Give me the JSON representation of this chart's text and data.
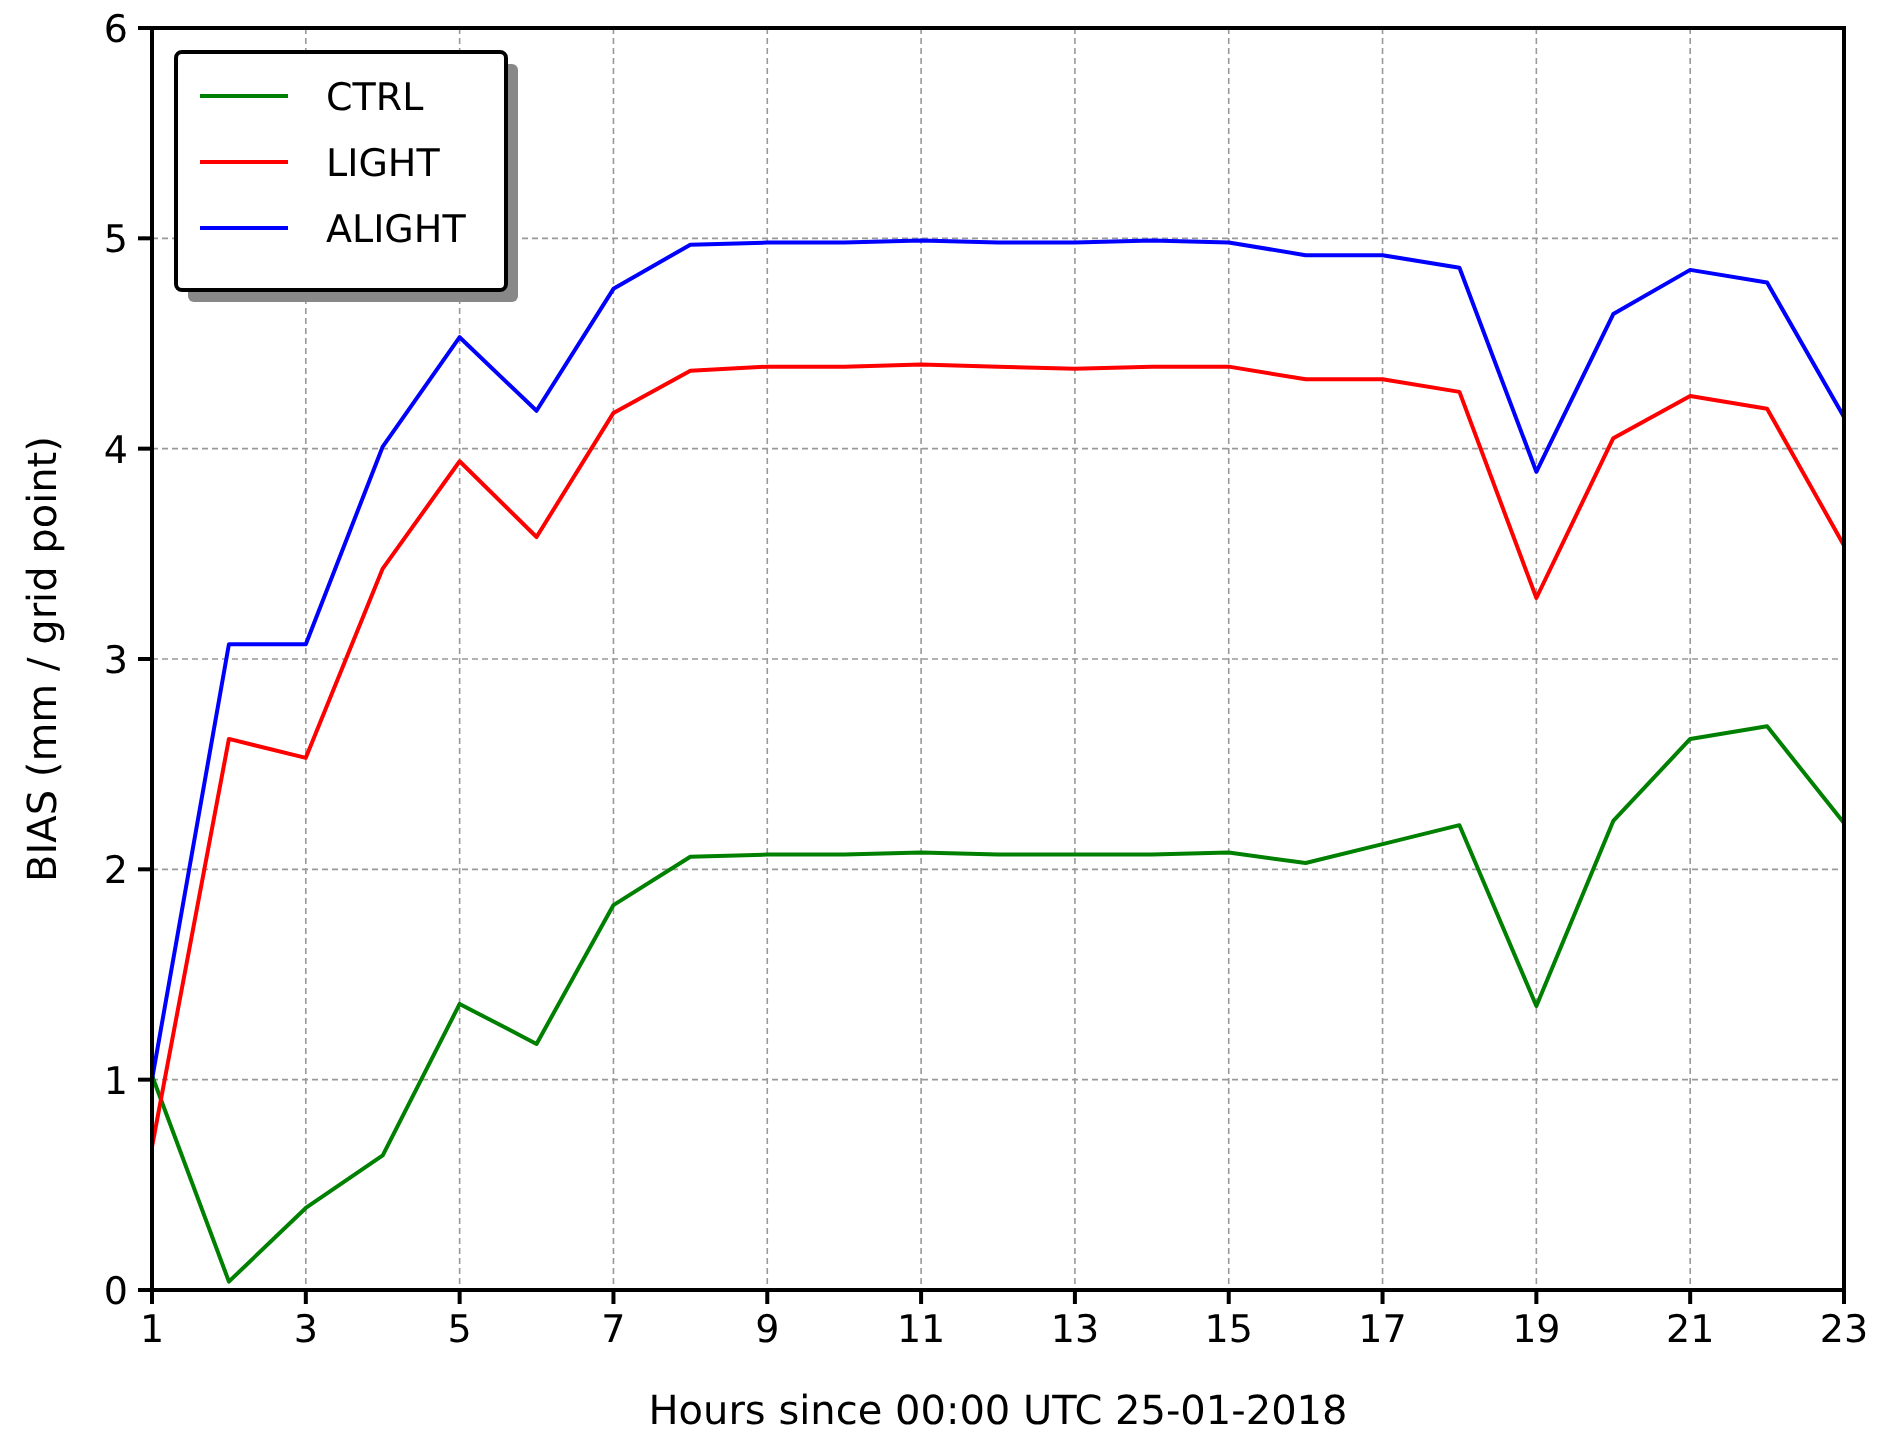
{
  "chart_data": {
    "type": "line",
    "xlabel": "Hours since 00:00 UTC 25-01-2018",
    "ylabel": "BIAS (mm / grid point)",
    "x": [
      1,
      2,
      3,
      4,
      5,
      6,
      7,
      8,
      9,
      10,
      11,
      12,
      13,
      14,
      15,
      16,
      17,
      18,
      19,
      20,
      21,
      22,
      23
    ],
    "series": [
      {
        "name": "CTRL",
        "color": "#008000",
        "values": [
          1.02,
          0.04,
          0.39,
          0.64,
          1.36,
          1.17,
          1.83,
          2.06,
          2.07,
          2.07,
          2.08,
          2.07,
          2.07,
          2.07,
          2.08,
          2.03,
          2.12,
          2.21,
          1.35,
          2.23,
          2.62,
          2.68,
          2.22
        ]
      },
      {
        "name": "LIGHT",
        "color": "#ff0000",
        "values": [
          0.68,
          2.62,
          2.53,
          3.43,
          3.94,
          3.58,
          4.17,
          4.37,
          4.39,
          4.39,
          4.4,
          4.39,
          4.38,
          4.39,
          4.39,
          4.33,
          4.33,
          4.27,
          3.29,
          4.05,
          4.25,
          4.19,
          3.54
        ]
      },
      {
        "name": "ALIGHT",
        "color": "#0000ff",
        "values": [
          1.0,
          3.07,
          3.07,
          4.01,
          4.53,
          4.18,
          4.76,
          4.97,
          4.98,
          4.98,
          4.99,
          4.98,
          4.98,
          4.99,
          4.98,
          4.92,
          4.92,
          4.86,
          3.89,
          4.64,
          4.85,
          4.79,
          4.15
        ]
      }
    ],
    "xlim": [
      1,
      23
    ],
    "xticks": [
      1,
      3,
      5,
      7,
      9,
      11,
      13,
      15,
      17,
      19,
      21,
      23
    ],
    "ylim": [
      0,
      6
    ],
    "yticks": [
      0,
      1,
      2,
      3,
      4,
      5,
      6
    ],
    "grid": true,
    "legend": "top left",
    "line_style": "solid"
  }
}
